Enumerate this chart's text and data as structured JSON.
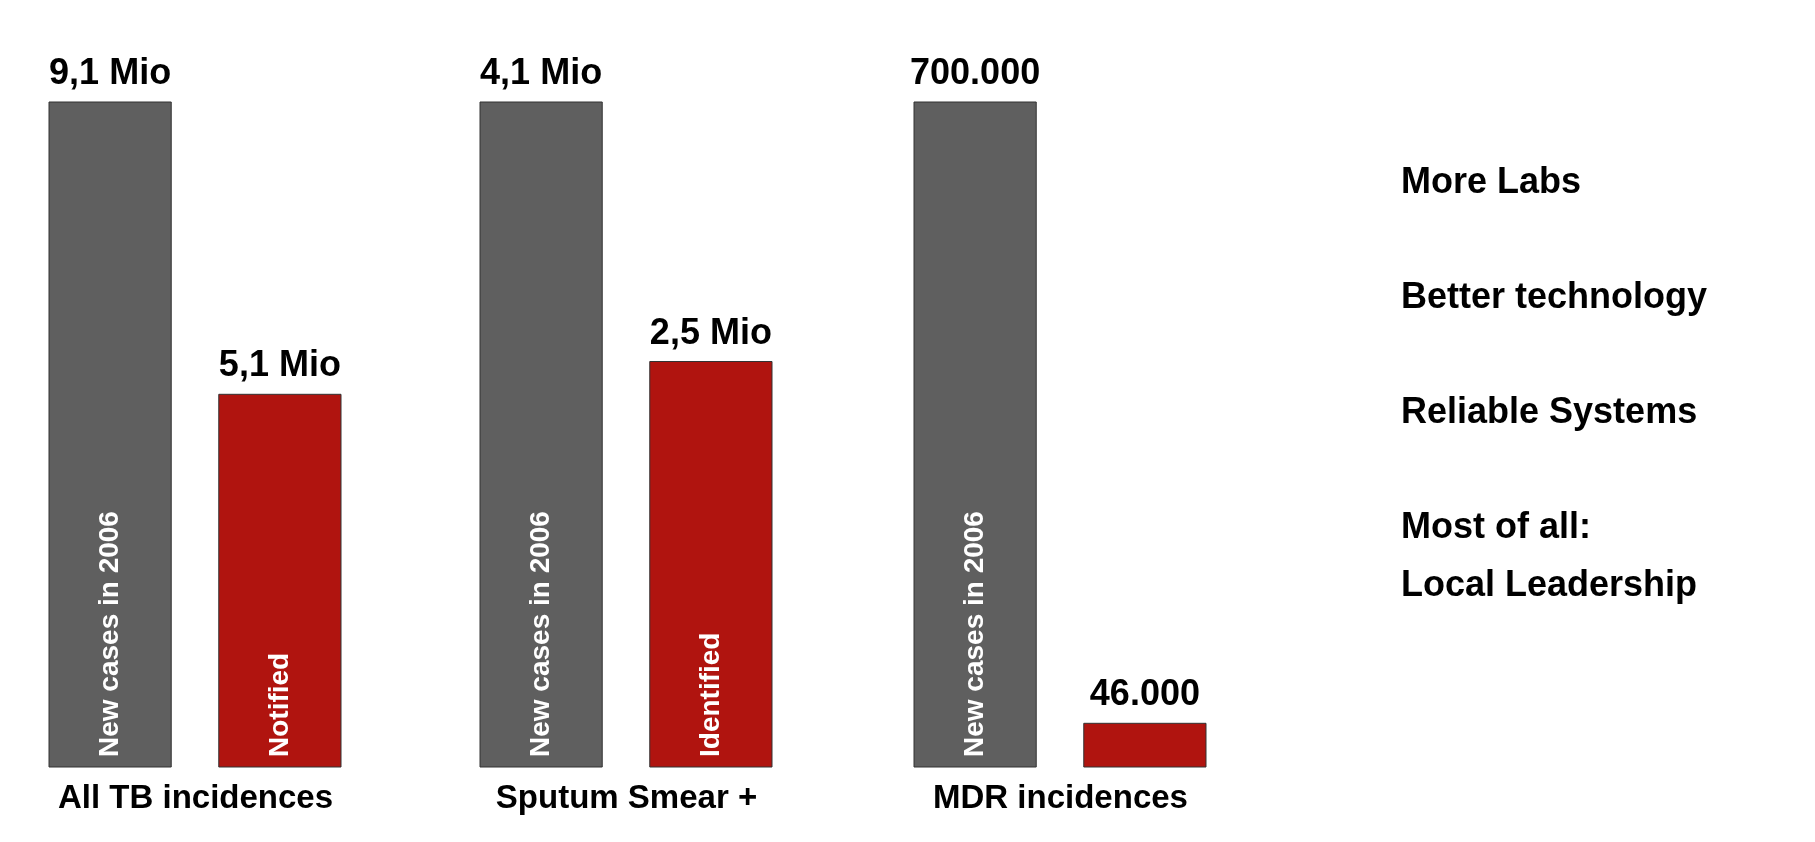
{
  "chart_data": [
    {
      "type": "bar",
      "xlabel": "All TB incidences",
      "categories": [
        null,
        null
      ],
      "values": [
        9.1,
        5.1
      ],
      "value_labels": [
        "9,1 Mio",
        "5,1 Mio"
      ],
      "colors": [
        "#5f5f5f",
        "#b0140f"
      ],
      "tick_labels": false,
      "annotations": [
        "New cases in 2006",
        "Notified"
      ]
    },
    {
      "type": "bar",
      "xlabel": "Sputum Smear +",
      "categories": [
        null,
        null
      ],
      "values": [
        4.1,
        2.5
      ],
      "value_labels": [
        "4,1 Mio",
        "2,5 Mio"
      ],
      "colors": [
        "#5f5f5f",
        "#b0140f"
      ],
      "tick_labels": false,
      "annotations": [
        "New cases in 2006",
        "Identified"
      ]
    },
    {
      "type": "bar",
      "xlabel": "MDR incidences",
      "categories": [
        null,
        null
      ],
      "values": [
        700000,
        46000
      ],
      "value_labels": [
        "700.000",
        "46.000"
      ],
      "colors": [
        "#5f5f5f",
        "#b0140f"
      ],
      "tick_labels": false,
      "annotations": [
        "New cases in 2006"
      ]
    },
    {
      "type": "other",
      "annotations": [
        "More Labs",
        "Better technology",
        "Reliable Systems",
        "Most of all:\nLocal Leadership"
      ]
    }
  ]
}
